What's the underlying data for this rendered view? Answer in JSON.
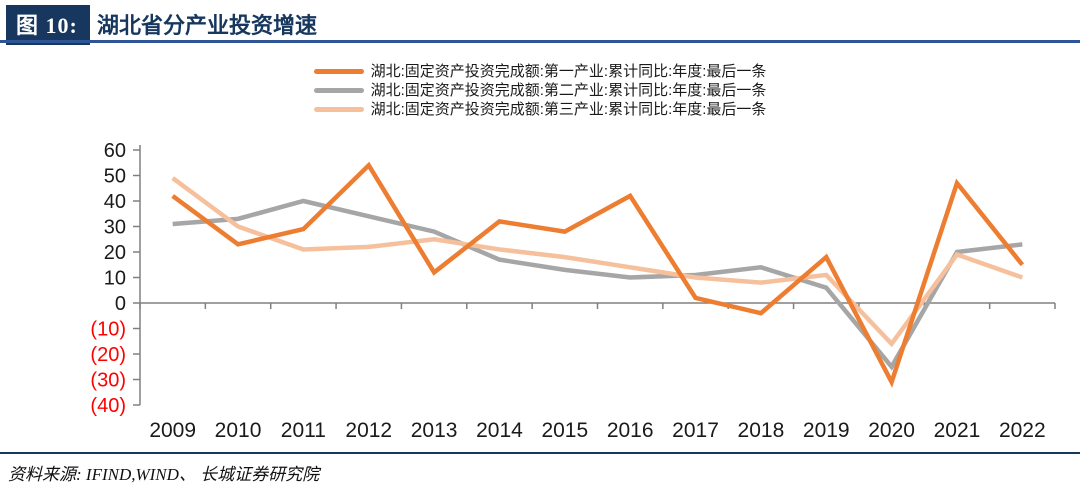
{
  "figure": {
    "badge": "图 10:",
    "title": "湖北省分产业投资增速"
  },
  "legend": [
    {
      "label": "湖北:固定资产投资完成额:第一产业:累计同比:年度:最后一条",
      "color": "#ED7D31"
    },
    {
      "label": "湖北:固定资产投资完成额:第二产业:累计同比:年度:最后一条",
      "color": "#A6A6A6"
    },
    {
      "label": "湖北:固定资产投资完成额:第三产业:累计同比:年度:最后一条",
      "color": "#F5C09B"
    }
  ],
  "chart_data": {
    "type": "line",
    "title": "湖北省分产业投资增速",
    "x": [
      "2009",
      "2010",
      "2011",
      "2012",
      "2013",
      "2014",
      "2015",
      "2016",
      "2017",
      "2018",
      "2019",
      "2020",
      "2021",
      "2022"
    ],
    "series": [
      {
        "name": "湖北:固定资产投资完成额:第一产业:累计同比:年度:最后一条",
        "key": "primary-industry",
        "color": "#ED7D31",
        "values": [
          42,
          23,
          29,
          54,
          12,
          32,
          28,
          42,
          2,
          -4,
          18,
          -31,
          47,
          15
        ]
      },
      {
        "name": "湖北:固定资产投资完成额:第二产业:累计同比:年度:最后一条",
        "key": "secondary-industry",
        "color": "#A6A6A6",
        "values": [
          31,
          33,
          40,
          34,
          28,
          17,
          13,
          10,
          11,
          14,
          6,
          -25,
          20,
          23
        ]
      },
      {
        "name": "湖北:固定资产投资完成额:第三产业:累计同比:年度:最后一条",
        "key": "tertiary-industry",
        "color": "#F5C09B",
        "values": [
          49,
          30,
          21,
          22,
          25,
          21,
          18,
          14,
          10,
          8,
          11,
          -16,
          19,
          10
        ]
      }
    ],
    "xlabel": "",
    "ylabel": "",
    "ylim": [
      -40,
      60
    ],
    "ytick_step": 10,
    "ytick_labels": [
      "60",
      "50",
      "40",
      "30",
      "20",
      "10",
      "0",
      "(10)",
      "(20)",
      "(30)",
      "(40)"
    ],
    "negative_label_color": "#FF0000",
    "axis_color": "#808080",
    "grid": false,
    "legend_position": "top"
  },
  "footer": {
    "source": "资料来源: IFIND,WIND、 长城证券研究院"
  }
}
